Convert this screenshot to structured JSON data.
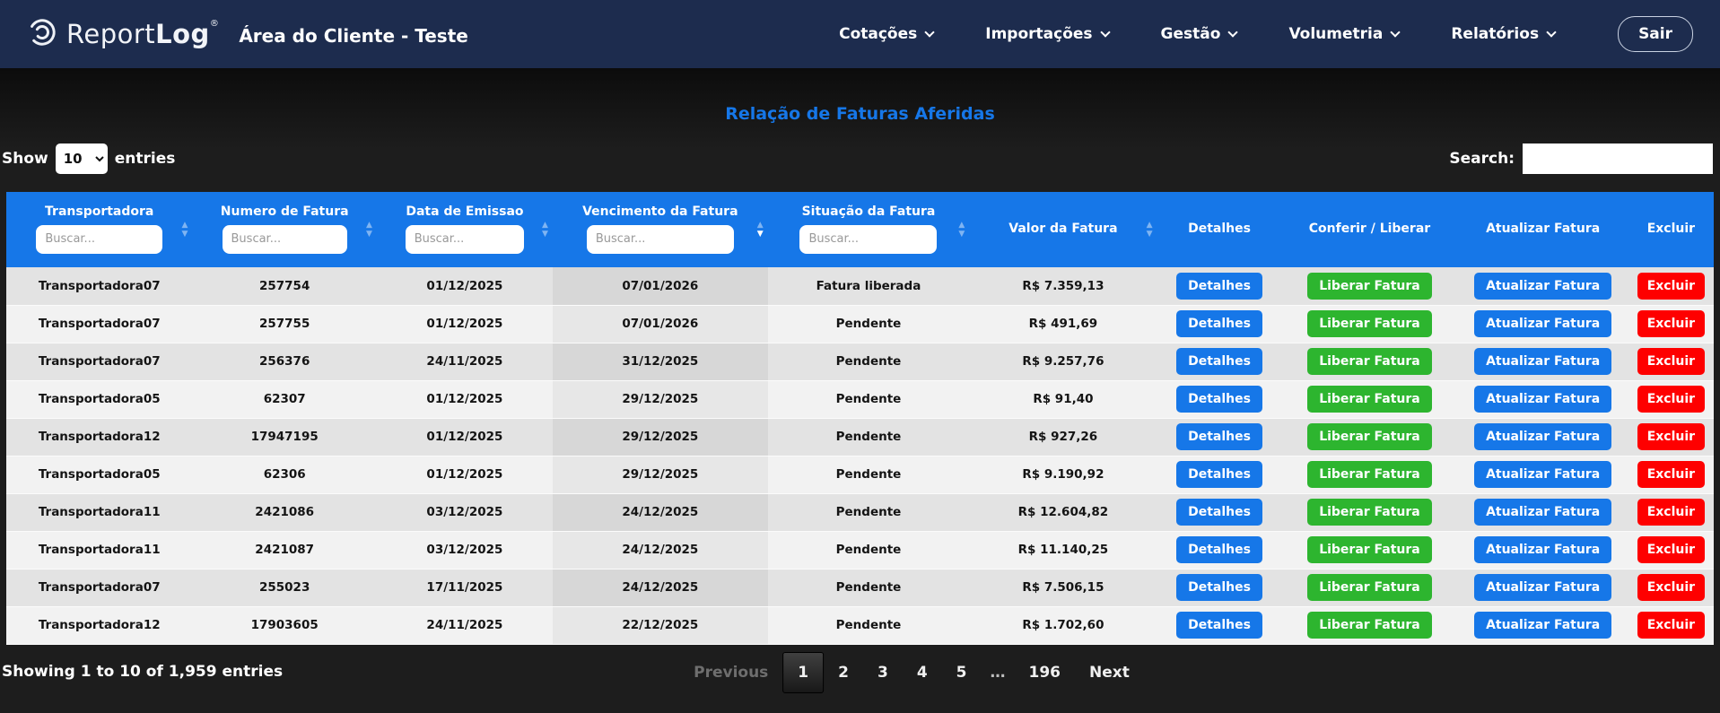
{
  "navbar": {
    "brand": {
      "icon": "reportlog-spiral-icon",
      "name_light": "Report",
      "name_bold": "Log",
      "trademark": "®"
    },
    "page_title": "Área do Cliente - Teste",
    "menu": [
      {
        "label": "Cotações"
      },
      {
        "label": "Importações"
      },
      {
        "label": "Gestão"
      },
      {
        "label": "Volumetria"
      },
      {
        "label": "Relatórios"
      }
    ],
    "logout_label": "Sair",
    "bg_color": "#1d2c4e"
  },
  "heading": {
    "title": "Relação de Faturas Aferidas",
    "color": "#1677e8"
  },
  "controls": {
    "show_label": "Show",
    "entries_label": "entries",
    "page_length": "10",
    "search_label": "Search:",
    "search_value": ""
  },
  "table": {
    "header_bg": "#1677e8",
    "columns": [
      {
        "key": "transportadora",
        "label": "Transportadora",
        "filter": true,
        "placeholder": "Buscar...",
        "sortable": true,
        "sort": ""
      },
      {
        "key": "numero_fatura",
        "label": "Numero de Fatura",
        "filter": true,
        "placeholder": "Buscar...",
        "sortable": true,
        "sort": ""
      },
      {
        "key": "data_emissao",
        "label": "Data de Emissao",
        "filter": true,
        "placeholder": "Buscar...",
        "sortable": true,
        "sort": ""
      },
      {
        "key": "vencimento",
        "label": "Vencimento da Fatura",
        "filter": true,
        "placeholder": "Buscar...",
        "sortable": true,
        "sort": "desc"
      },
      {
        "key": "situacao",
        "label": "Situação da Fatura",
        "filter": true,
        "placeholder": "Buscar...",
        "sortable": true,
        "sort": ""
      },
      {
        "key": "valor",
        "label": "Valor da Fatura",
        "filter": false,
        "placeholder": "",
        "sortable": true,
        "sort": ""
      },
      {
        "key": "detalhes",
        "label": "Detalhes",
        "filter": false,
        "placeholder": "",
        "sortable": false,
        "sort": ""
      },
      {
        "key": "conferir_liberar",
        "label": "Conferir / Liberar",
        "filter": false,
        "placeholder": "",
        "sortable": false,
        "sort": ""
      },
      {
        "key": "atualizar_fatura",
        "label": "Atualizar Fatura",
        "filter": false,
        "placeholder": "",
        "sortable": false,
        "sort": ""
      },
      {
        "key": "excluir",
        "label": "Excluir",
        "filter": false,
        "placeholder": "",
        "sortable": false,
        "sort": ""
      }
    ],
    "actions": {
      "detalhes": "Detalhes",
      "liberar": "Liberar Fatura",
      "atualizar": "Atualizar Fatura",
      "excluir": "Excluir"
    },
    "action_colors": {
      "blue": "#1677e8",
      "green": "#2db52f",
      "red": "#fe0000"
    },
    "rows": [
      {
        "transportadora": "Transportadora07",
        "numero_fatura": "257754",
        "data_emissao": "01/12/2025",
        "vencimento": "07/01/2026",
        "situacao": "Fatura liberada",
        "valor": "R$ 7.359,13"
      },
      {
        "transportadora": "Transportadora07",
        "numero_fatura": "257755",
        "data_emissao": "01/12/2025",
        "vencimento": "07/01/2026",
        "situacao": "Pendente",
        "valor": "R$ 491,69"
      },
      {
        "transportadora": "Transportadora07",
        "numero_fatura": "256376",
        "data_emissao": "24/11/2025",
        "vencimento": "31/12/2025",
        "situacao": "Pendente",
        "valor": "R$ 9.257,76"
      },
      {
        "transportadora": "Transportadora05",
        "numero_fatura": "62307",
        "data_emissao": "01/12/2025",
        "vencimento": "29/12/2025",
        "situacao": "Pendente",
        "valor": "R$ 91,40"
      },
      {
        "transportadora": "Transportadora12",
        "numero_fatura": "17947195",
        "data_emissao": "01/12/2025",
        "vencimento": "29/12/2025",
        "situacao": "Pendente",
        "valor": "R$ 927,26"
      },
      {
        "transportadora": "Transportadora05",
        "numero_fatura": "62306",
        "data_emissao": "01/12/2025",
        "vencimento": "29/12/2025",
        "situacao": "Pendente",
        "valor": "R$ 9.190,92"
      },
      {
        "transportadora": "Transportadora11",
        "numero_fatura": "2421086",
        "data_emissao": "03/12/2025",
        "vencimento": "24/12/2025",
        "situacao": "Pendente",
        "valor": "R$ 12.604,82"
      },
      {
        "transportadora": "Transportadora11",
        "numero_fatura": "2421087",
        "data_emissao": "03/12/2025",
        "vencimento": "24/12/2025",
        "situacao": "Pendente",
        "valor": "R$ 11.140,25"
      },
      {
        "transportadora": "Transportadora07",
        "numero_fatura": "255023",
        "data_emissao": "17/11/2025",
        "vencimento": "24/12/2025",
        "situacao": "Pendente",
        "valor": "R$ 7.506,15"
      },
      {
        "transportadora": "Transportadora12",
        "numero_fatura": "17903605",
        "data_emissao": "24/11/2025",
        "vencimento": "22/12/2025",
        "situacao": "Pendente",
        "valor": "R$ 1.702,60"
      }
    ]
  },
  "footer": {
    "showing_text": "Showing 1 to 10 of 1,959 entries",
    "pagination": [
      {
        "label": "Previous",
        "type": "prev",
        "disabled": true,
        "current": false
      },
      {
        "label": "1",
        "type": "page",
        "disabled": false,
        "current": true
      },
      {
        "label": "2",
        "type": "page",
        "disabled": false,
        "current": false
      },
      {
        "label": "3",
        "type": "page",
        "disabled": false,
        "current": false
      },
      {
        "label": "4",
        "type": "page",
        "disabled": false,
        "current": false
      },
      {
        "label": "5",
        "type": "page",
        "disabled": false,
        "current": false
      },
      {
        "label": "…",
        "type": "ellipsis",
        "disabled": true,
        "current": false
      },
      {
        "label": "196",
        "type": "page",
        "disabled": false,
        "current": false
      },
      {
        "label": "Next",
        "type": "next",
        "disabled": false,
        "current": false
      }
    ]
  }
}
